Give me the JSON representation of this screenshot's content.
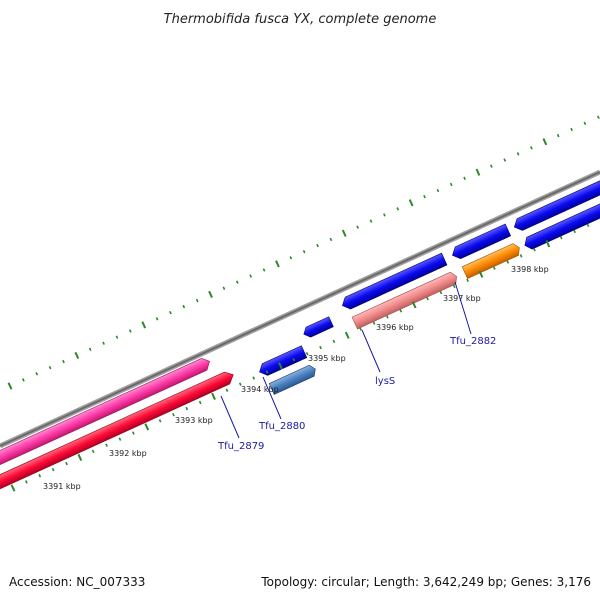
{
  "title": "Thermobifida fusca YX, complete genome",
  "footer": {
    "accession": "Accession: NC_007333",
    "topology": "Topology: circular; Length: 3,642,249 bp; Genes: 3,176"
  },
  "colors": {
    "backbone": "#808080",
    "tick": "#2a8a2a",
    "gene_label": "#1a1aa6",
    "forward_cds": "#0a0af0",
    "reverse_cds": "#ff0a3a",
    "pink_cds": "#ff3aa8",
    "steelblue_cds": "#4a80c0",
    "salmon_cds": "#f08a8a",
    "orange_cds": "#ff8a00"
  },
  "scale": {
    "labels": [
      "3391 kbp",
      "3392 kbp",
      "3393 kbp",
      "3394 kbp",
      "3395 kbp",
      "3396 kbp",
      "3397 kbp",
      "3398 kbp"
    ]
  },
  "genes": {
    "tfu_2879": "Tfu_2879",
    "tfu_2880": "Tfu_2880",
    "lyss": "lysS",
    "tfu_2882": "Tfu_2882"
  }
}
